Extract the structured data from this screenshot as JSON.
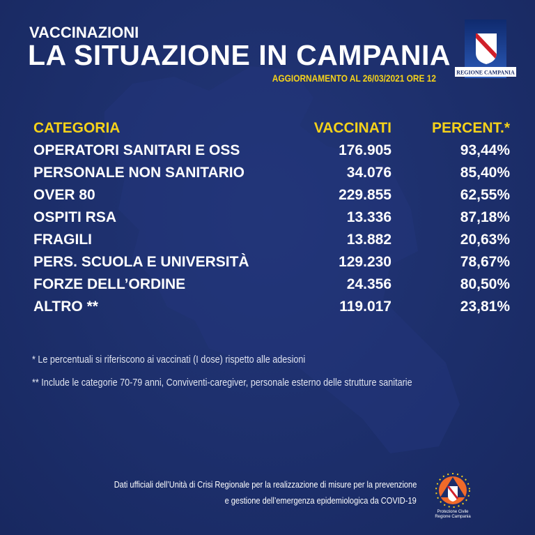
{
  "header": {
    "subtitle": "VACCINAZIONI",
    "title": "LA SITUAZIONE IN CAMPANIA",
    "update": "AGGIORNAMENTO AL 26/03/2021 ORE 12"
  },
  "logo": {
    "text": "REGIONE CAMPANIA"
  },
  "table": {
    "headers": [
      "CATEGORIA",
      "VACCINATI",
      "PERCENT.*"
    ],
    "rows": [
      [
        "OPERATORI SANITARI E OSS",
        "176.905",
        "93,44%"
      ],
      [
        "PERSONALE NON SANITARIO",
        "34.076",
        "85,40%"
      ],
      [
        "OVER 80",
        "229.855",
        "62,55%"
      ],
      [
        "OSPITI RSA",
        "13.336",
        "87,18%"
      ],
      [
        "FRAGILI",
        "13.882",
        "20,63%"
      ],
      [
        "PERS.  SCUOLA E UNIVERSITÀ",
        "129.230",
        "78,67%"
      ],
      [
        "FORZE DELL’ORDINE",
        "24.356",
        "80,50%"
      ],
      [
        "ALTRO **",
        "119.017",
        "23,81%"
      ]
    ]
  },
  "notes": [
    "* Le percentuali si riferiscono ai vaccinati (I dose) rispetto alle adesioni",
    "** Include le categorie 70-79 anni, Conviventi-caregiver, personale esterno delle strutture sanitarie"
  ],
  "footer": {
    "line1": "Dati ufficiali dell’Unità di Crisi Regionale per la realizzazione di misure per la  prevenzione",
    "line2": "e gestione dell’emergenza epidemiologica da COVID-19"
  },
  "protezione_logo": {
    "line1": "Protezione Civile",
    "line2": "Regione Campania"
  },
  "colors": {
    "background": "#1c2e6a",
    "accent": "#f5d21a",
    "text": "#ffffff"
  }
}
